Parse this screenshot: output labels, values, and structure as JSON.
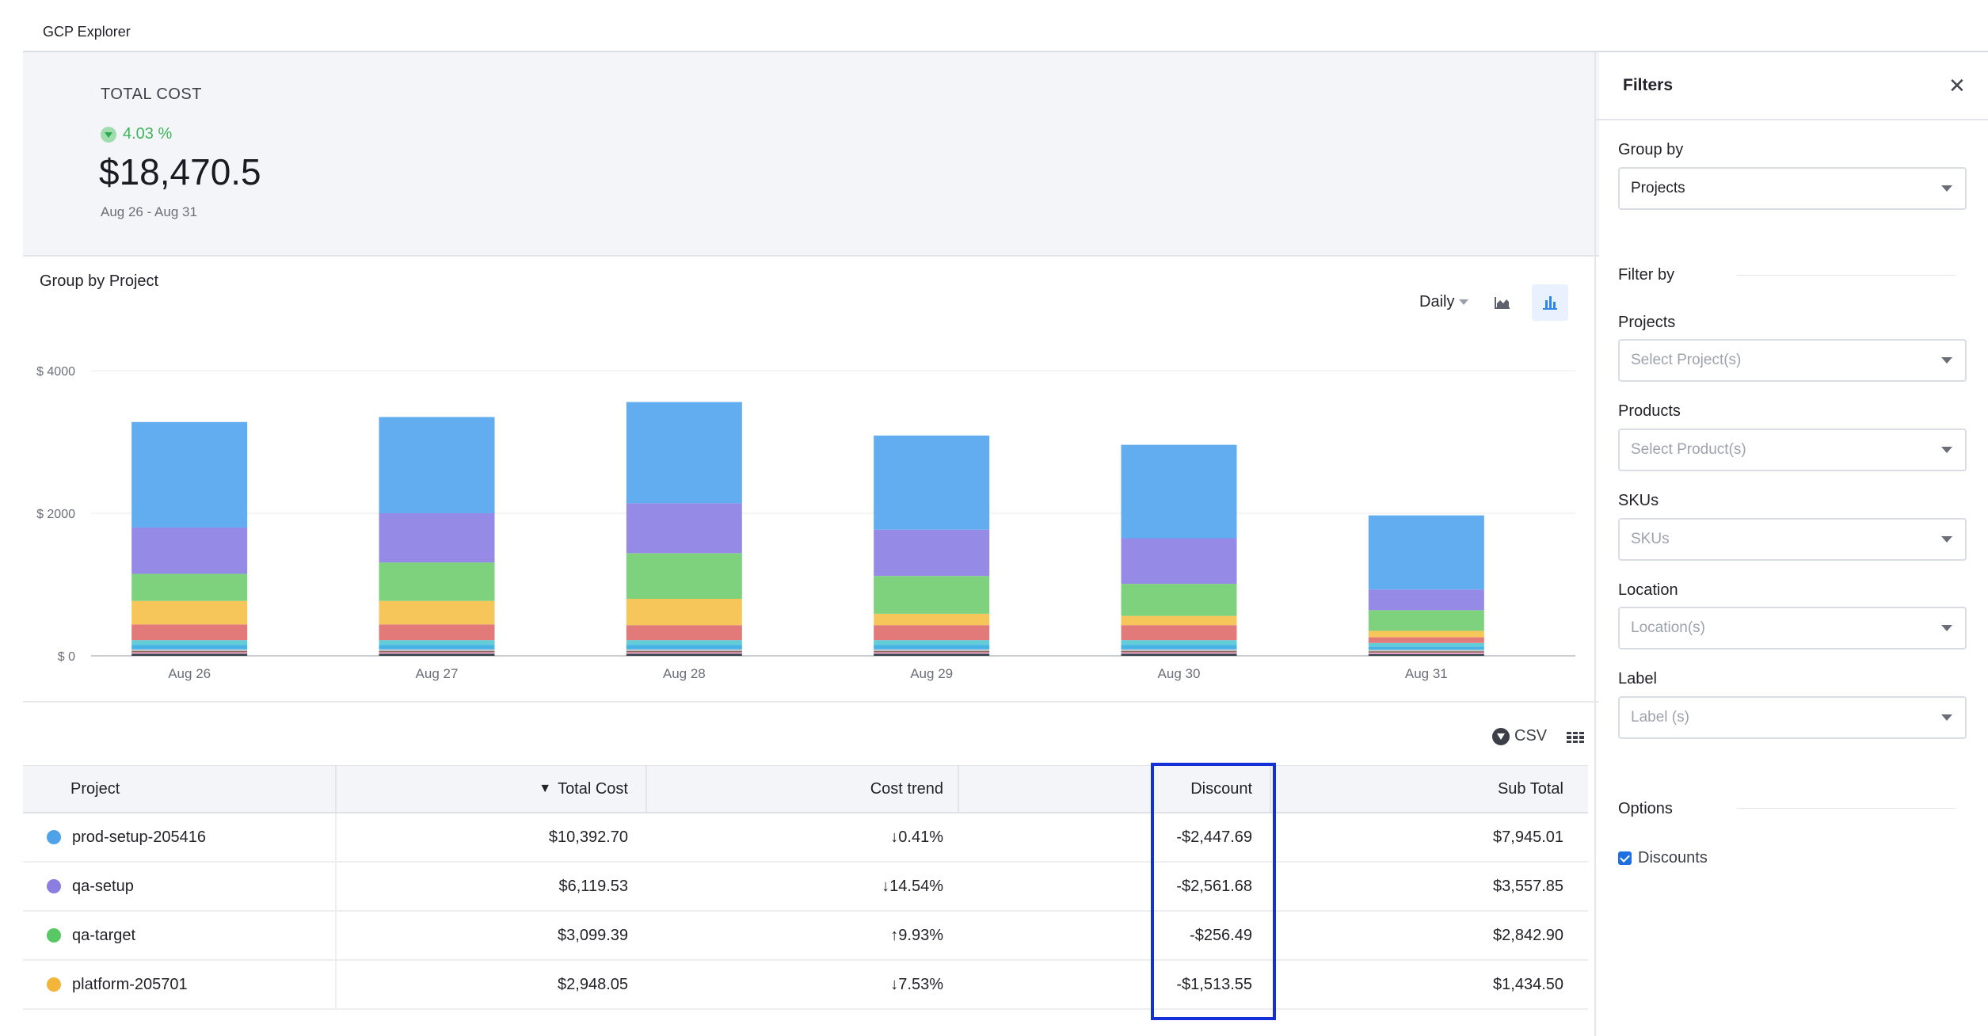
{
  "app": {
    "title": "GCP Explorer"
  },
  "summary": {
    "label": "TOTAL COST",
    "trend_pct": "4.03 %",
    "total": "$18,470.5",
    "date_range": "Aug 26 - Aug 31"
  },
  "chart_section": {
    "title": "Group by Project",
    "period": "Daily"
  },
  "chart_data": {
    "type": "bar",
    "stacked": true,
    "categories": [
      "Aug 26",
      "Aug 27",
      "Aug 28",
      "Aug 29",
      "Aug 30",
      "Aug 31"
    ],
    "ytick_labels": [
      "$ 0",
      "$ 2000",
      "$ 4000"
    ],
    "ylim": [
      0,
      4000
    ],
    "grid": true,
    "series": [
      {
        "color": "#35424a",
        "values": [
          30,
          30,
          30,
          30,
          30,
          25
        ]
      },
      {
        "color": "#f3a6cf",
        "values": [
          20,
          20,
          20,
          20,
          20,
          20
        ]
      },
      {
        "color": "#8b6a59",
        "values": [
          20,
          20,
          20,
          20,
          20,
          20
        ]
      },
      {
        "color": "#c4c8cf",
        "values": [
          20,
          20,
          20,
          20,
          20,
          20
        ]
      },
      {
        "color": "#4ab3e6",
        "values": [
          60,
          60,
          60,
          60,
          60,
          45
        ]
      },
      {
        "color": "#62cdd9",
        "values": [
          70,
          70,
          70,
          70,
          70,
          50
        ]
      },
      {
        "color": "#e27a7a",
        "values": [
          220,
          220,
          210,
          210,
          210,
          80
        ]
      },
      {
        "color": "#f7c65a",
        "values": [
          330,
          330,
          370,
          160,
          130,
          90
        ]
      },
      {
        "color": "#7fd27d",
        "values": [
          380,
          540,
          640,
          530,
          450,
          290
        ]
      },
      {
        "color": "#968ae7",
        "values": [
          650,
          690,
          700,
          650,
          640,
          290
        ]
      },
      {
        "color": "#61adf0",
        "values": [
          1480,
          1350,
          1420,
          1320,
          1310,
          1040
        ]
      }
    ]
  },
  "table": {
    "csv_label": "CSV",
    "headers": {
      "project": "Project",
      "total_cost": "Total Cost",
      "cost_trend": "Cost trend",
      "discount": "Discount",
      "sub_total": "Sub Total"
    },
    "sort_indicator": "▼",
    "rows": [
      {
        "project": "prod-setup-205416",
        "color": "#4ea3e8",
        "total_cost": "$10,392.70",
        "trend": "↓0.41%",
        "trend_dir": "down",
        "discount": "-$2,447.69",
        "sub_total": "$7,945.01"
      },
      {
        "project": "qa-setup",
        "color": "#8a7fe0",
        "total_cost": "$6,119.53",
        "trend": "↓14.54%",
        "trend_dir": "down",
        "discount": "-$2,561.68",
        "sub_total": "$3,557.85"
      },
      {
        "project": "qa-target",
        "color": "#58c865",
        "total_cost": "$3,099.39",
        "trend": "↑9.93%",
        "trend_dir": "up",
        "discount": "-$256.49",
        "sub_total": "$2,842.90"
      },
      {
        "project": "platform-205701",
        "color": "#f2b53a",
        "total_cost": "$2,948.05",
        "trend": "↓7.53%",
        "trend_dir": "down",
        "discount": "-$1,513.55",
        "sub_total": "$1,434.50"
      }
    ]
  },
  "filters": {
    "title": "Filters",
    "group_by_label": "Group by",
    "group_by_value": "Projects",
    "filter_by_label": "Filter by",
    "projects_label": "Projects",
    "projects_placeholder": "Select Project(s)",
    "products_label": "Products",
    "products_placeholder": "Select Product(s)",
    "skus_label": "SKUs",
    "skus_placeholder": "SKUs",
    "location_label": "Location",
    "location_placeholder": "Location(s)",
    "label_label": "Label",
    "label_placeholder": "Label (s)",
    "options_label": "Options",
    "discounts_label": "Discounts",
    "discounts_checked": true
  }
}
